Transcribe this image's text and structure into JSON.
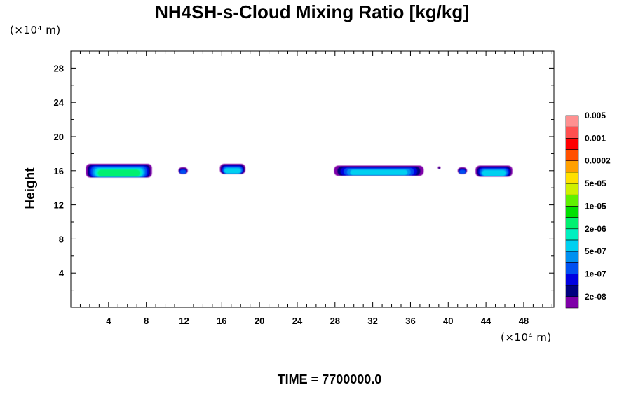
{
  "chart_data": {
    "type": "heatmap",
    "title": "NH4SH-s-Cloud Mixing Ratio [kg/kg]",
    "ylabel": "Height",
    "xlabel": "",
    "x_unit": "(×10⁴ m)",
    "y_unit": "(×10⁴ m)",
    "time_label": "TIME = 7700000.0",
    "xlim": [
      0,
      51.2
    ],
    "ylim": [
      0,
      30
    ],
    "x_ticks": [
      4,
      8,
      12,
      16,
      20,
      24,
      28,
      32,
      36,
      40,
      44,
      48
    ],
    "y_ticks": [
      4,
      8,
      12,
      16,
      20,
      24,
      28
    ],
    "colorbar": {
      "colors": [
        "#7f00a8",
        "#00007f",
        "#0000e0",
        "#0050f0",
        "#0090f0",
        "#00d0f0",
        "#00f0c0",
        "#00f070",
        "#00e000",
        "#60f000",
        "#d0f000",
        "#ffe000",
        "#ffa000",
        "#ff5000",
        "#ff0000",
        "#ff5050",
        "#ff9090"
      ],
      "labels": [
        "2e-08",
        "1e-07",
        "5e-07",
        "2e-06",
        "1e-05",
        "5e-05",
        "0.0002",
        "0.001",
        "0.005"
      ]
    },
    "cloud_regions": [
      {
        "x_start": 1.6,
        "x_end": 8.6,
        "y_bottom": 15.2,
        "y_top": 16.8,
        "max_level": "2e-06"
      },
      {
        "x_start": 11.4,
        "x_end": 12.4,
        "y_bottom": 15.6,
        "y_top": 16.4,
        "max_level": "1e-07"
      },
      {
        "x_start": 15.8,
        "x_end": 18.5,
        "y_bottom": 15.6,
        "y_top": 16.8,
        "max_level": "5e-07"
      },
      {
        "x_start": 27.9,
        "x_end": 37.4,
        "y_bottom": 15.4,
        "y_top": 16.6,
        "max_level": "5e-07"
      },
      {
        "x_start": 38.9,
        "x_end": 39.2,
        "y_bottom": 16.2,
        "y_top": 16.5,
        "max_level": "2e-08"
      },
      {
        "x_start": 41.0,
        "x_end": 42.0,
        "y_bottom": 15.6,
        "y_top": 16.4,
        "max_level": "1e-07"
      },
      {
        "x_start": 42.9,
        "x_end": 46.8,
        "y_bottom": 15.3,
        "y_top": 16.6,
        "max_level": "5e-07"
      }
    ]
  }
}
